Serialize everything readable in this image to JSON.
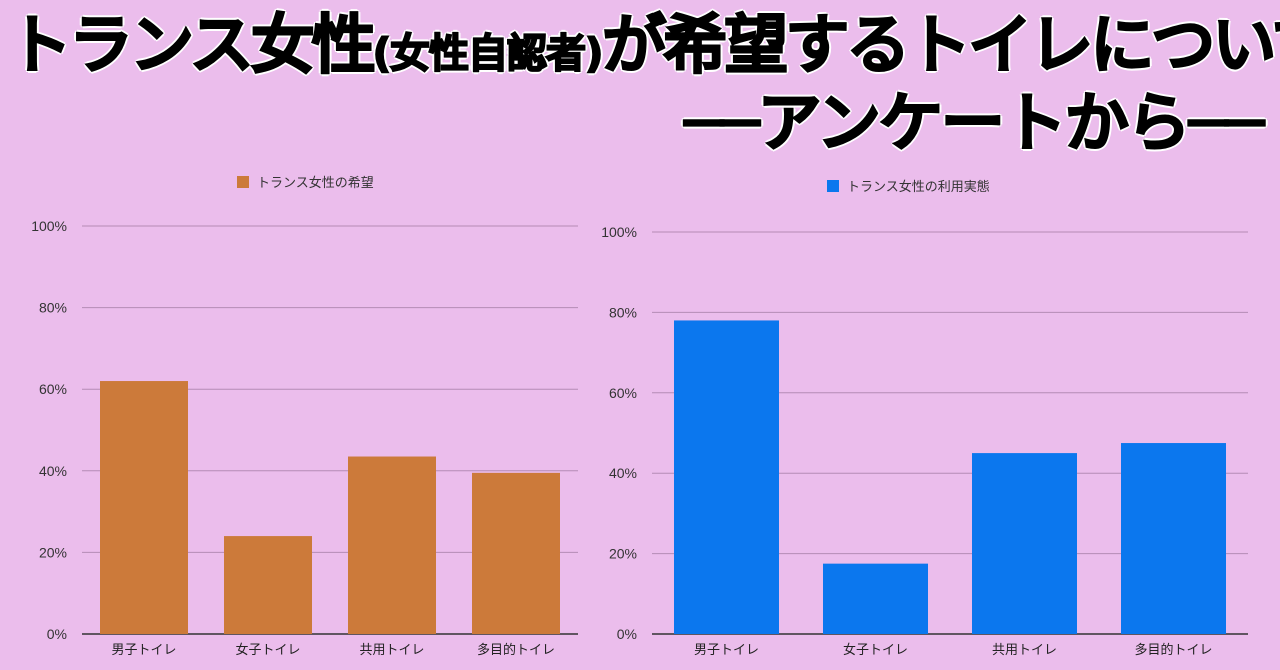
{
  "title": {
    "line1_main": "トランス女性",
    "line1_paren": "(女性自認者)",
    "line1_rest": "が希望するトイレについて",
    "line2": "──アンケートから──"
  },
  "chart_data": [
    {
      "type": "bar",
      "title": "",
      "categories": [
        "男子トイレ",
        "女子トイレ",
        "共用トイレ",
        "多目的トイレ"
      ],
      "series": [
        {
          "name": "トランス女性の希望",
          "color": "#cc7a3a",
          "values": [
            62,
            24,
            43.5,
            39.5
          ]
        }
      ],
      "ylim": [
        0,
        100
      ],
      "yticks": [
        "0%",
        "20%",
        "40%",
        "60%",
        "80%",
        "100%"
      ],
      "grid": true,
      "legend": "top"
    },
    {
      "type": "bar",
      "title": "",
      "categories": [
        "男子トイレ",
        "女子トイレ",
        "共用トイレ",
        "多目的トイレ"
      ],
      "series": [
        {
          "name": "トランス女性の利用実態",
          "color": "#0b77ee",
          "values": [
            78,
            17.5,
            45,
            47.5
          ]
        }
      ],
      "ylim": [
        0,
        100
      ],
      "yticks": [
        "0%",
        "20%",
        "40%",
        "60%",
        "80%",
        "100%"
      ],
      "grid": true,
      "legend": "top"
    }
  ]
}
